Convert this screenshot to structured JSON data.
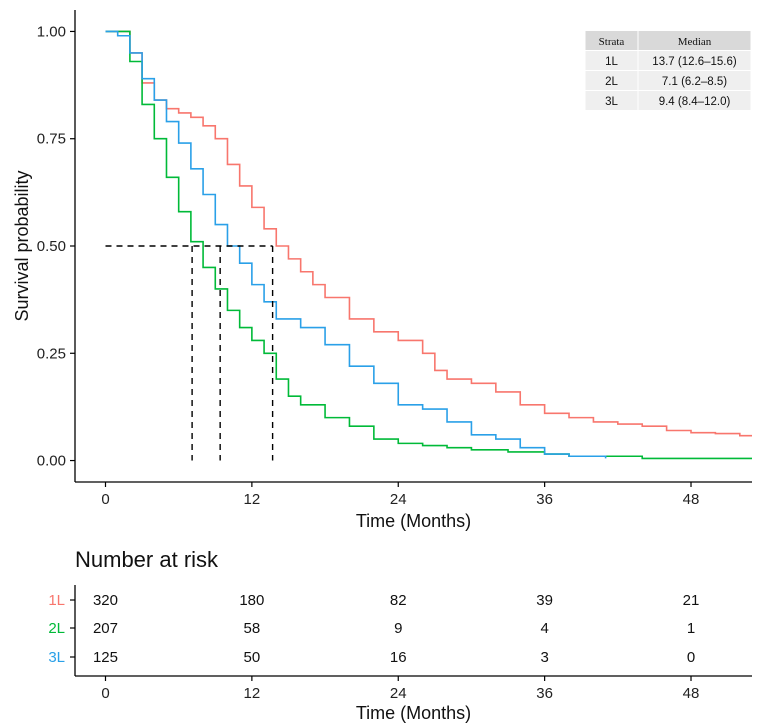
{
  "chart_data": {
    "type": "line",
    "subtype": "kaplan-meier",
    "xlabel": "Time (Months)",
    "ylabel": "Survival probability",
    "xlim": [
      -2.5,
      53
    ],
    "ylim": [
      -0.05,
      1.05
    ],
    "x_ticks": [
      0,
      12,
      24,
      36,
      48
    ],
    "x_tick_labels": [
      "0",
      "12",
      "24",
      "36",
      "48"
    ],
    "y_ticks": [
      0,
      0.25,
      0.5,
      0.75,
      1.0
    ],
    "y_tick_labels": [
      "0.00",
      "0.25",
      "0.50",
      "0.75",
      "1.00"
    ],
    "grid": false,
    "median_line_y": 0.5,
    "series": [
      {
        "name": "1L",
        "color": "#f8766d",
        "median": 13.7,
        "points": [
          [
            0,
            1.0
          ],
          [
            1,
            1.0
          ],
          [
            2,
            0.95
          ],
          [
            3,
            0.88
          ],
          [
            4,
            0.84
          ],
          [
            5,
            0.82
          ],
          [
            6,
            0.81
          ],
          [
            7,
            0.8
          ],
          [
            8,
            0.78
          ],
          [
            9,
            0.75
          ],
          [
            10,
            0.69
          ],
          [
            11,
            0.64
          ],
          [
            12,
            0.59
          ],
          [
            13,
            0.54
          ],
          [
            14,
            0.5
          ],
          [
            15,
            0.47
          ],
          [
            16,
            0.44
          ],
          [
            17,
            0.41
          ],
          [
            18,
            0.38
          ],
          [
            20,
            0.33
          ],
          [
            22,
            0.3
          ],
          [
            24,
            0.28
          ],
          [
            26,
            0.25
          ],
          [
            27,
            0.21
          ],
          [
            28,
            0.19
          ],
          [
            30,
            0.18
          ],
          [
            32,
            0.16
          ],
          [
            34,
            0.13
          ],
          [
            36,
            0.11
          ],
          [
            38,
            0.1
          ],
          [
            40,
            0.09
          ],
          [
            42,
            0.085
          ],
          [
            44,
            0.08
          ],
          [
            46,
            0.07
          ],
          [
            48,
            0.065
          ],
          [
            50,
            0.063
          ],
          [
            52,
            0.058
          ],
          [
            53,
            0.058
          ]
        ]
      },
      {
        "name": "2L",
        "color": "#00ba38",
        "median": 7.1,
        "points": [
          [
            0,
            1.0
          ],
          [
            1.2,
            1.0
          ],
          [
            2,
            0.93
          ],
          [
            3,
            0.83
          ],
          [
            4,
            0.75
          ],
          [
            5,
            0.66
          ],
          [
            6,
            0.58
          ],
          [
            7,
            0.51
          ],
          [
            8,
            0.45
          ],
          [
            9,
            0.4
          ],
          [
            10,
            0.35
          ],
          [
            11,
            0.31
          ],
          [
            12,
            0.28
          ],
          [
            13,
            0.25
          ],
          [
            14,
            0.19
          ],
          [
            15,
            0.15
          ],
          [
            16,
            0.13
          ],
          [
            18,
            0.1
          ],
          [
            20,
            0.08
          ],
          [
            22,
            0.05
          ],
          [
            24,
            0.04
          ],
          [
            26,
            0.035
          ],
          [
            28,
            0.03
          ],
          [
            30,
            0.025
          ],
          [
            33,
            0.02
          ],
          [
            36,
            0.015
          ],
          [
            38,
            0.01
          ],
          [
            40,
            0.01
          ],
          [
            44,
            0.005
          ],
          [
            48,
            0.005
          ],
          [
            53,
            0.005
          ]
        ]
      },
      {
        "name": "3L",
        "color": "#2aa0e8",
        "median": 9.4,
        "points": [
          [
            0,
            1.0
          ],
          [
            1,
            0.99
          ],
          [
            2,
            0.95
          ],
          [
            3,
            0.89
          ],
          [
            4,
            0.84
          ],
          [
            5,
            0.79
          ],
          [
            6,
            0.74
          ],
          [
            7,
            0.68
          ],
          [
            8,
            0.62
          ],
          [
            9,
            0.55
          ],
          [
            10,
            0.5
          ],
          [
            11,
            0.46
          ],
          [
            12,
            0.41
          ],
          [
            13,
            0.37
          ],
          [
            14,
            0.33
          ],
          [
            16,
            0.31
          ],
          [
            18,
            0.27
          ],
          [
            20,
            0.22
          ],
          [
            22,
            0.18
          ],
          [
            24,
            0.13
          ],
          [
            26,
            0.12
          ],
          [
            28,
            0.09
          ],
          [
            30,
            0.06
          ],
          [
            32,
            0.05
          ],
          [
            34,
            0.03
          ],
          [
            36,
            0.015
          ],
          [
            38,
            0.01
          ],
          [
            41,
            0.005
          ]
        ]
      }
    ],
    "median_table": {
      "headers": [
        "Strata",
        "Median"
      ],
      "rows": [
        [
          "1L",
          "13.7 (12.6–15.6)"
        ],
        [
          "2L",
          "7.1 (6.2–8.5)"
        ],
        [
          "3L",
          "9.4 (8.4–12.0)"
        ]
      ],
      "position": "top-right"
    },
    "risk_table": {
      "title": "Number at risk",
      "xlabel": "Time (Months)",
      "times": [
        0,
        12,
        24,
        36,
        48
      ],
      "time_labels": [
        "0",
        "12",
        "24",
        "36",
        "48"
      ],
      "rows": [
        {
          "name": "1L",
          "color": "#f8766d",
          "counts": [
            "320",
            "180",
            "82",
            "39",
            "21"
          ]
        },
        {
          "name": "2L",
          "color": "#00ba38",
          "counts": [
            "207",
            "58",
            "9",
            "4",
            "1"
          ]
        },
        {
          "name": "3L",
          "color": "#2aa0e8",
          "counts": [
            "125",
            "50",
            "16",
            "3",
            "0"
          ]
        }
      ]
    }
  }
}
